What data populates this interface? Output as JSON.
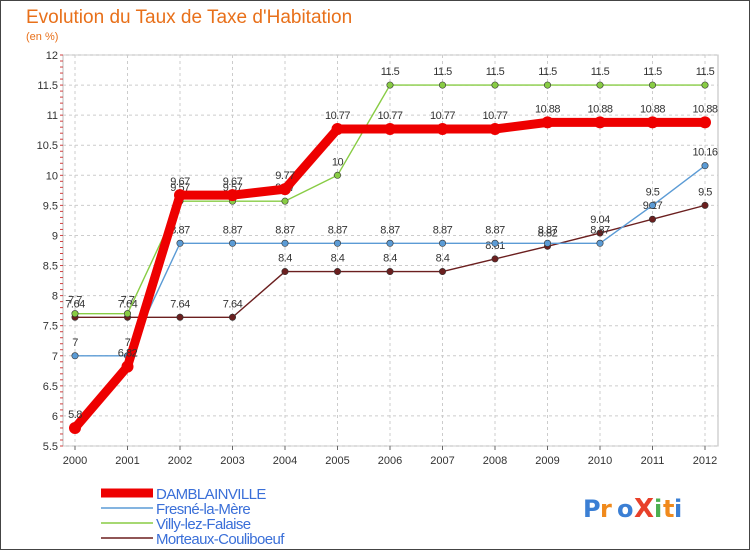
{
  "chart_data": {
    "type": "line",
    "title": "Evolution du Taux de Taxe d'Habitation",
    "subtitle": "(en %)",
    "xlabel": "",
    "ylabel": "",
    "x": [
      "2000",
      "2001",
      "2002",
      "2003",
      "2004",
      "2005",
      "2006",
      "2007",
      "2008",
      "2009",
      "2010",
      "2011",
      "2012"
    ],
    "ylim": [
      5.5,
      12
    ],
    "yticks": [
      "5.5",
      "6",
      "6.5",
      "7",
      "7.5",
      "8",
      "8.5",
      "9",
      "9.5",
      "10",
      "10.5",
      "11",
      "11.5",
      "12"
    ],
    "grid": true,
    "legend_position": "bottom-left",
    "series": [
      {
        "name": "Morteaux-Coulibœuf",
        "name_display": "Morteaux-Couliboeuf",
        "color": "#6b1f1f",
        "values": [
          7.64,
          7.64,
          7.64,
          7.64,
          8.4,
          8.4,
          8.4,
          8.4,
          8.61,
          8.82,
          9.04,
          9.27,
          9.5
        ],
        "labels": [
          "7.64",
          "7.64",
          "7.64",
          "7.64",
          "8.4",
          "8.4",
          "8.4",
          "8.4",
          "8.61",
          "8.82",
          "9.04",
          "9.27",
          "9.5"
        ]
      },
      {
        "name": "Villy-lez-Falaise",
        "color": "#88cc44",
        "values": [
          7.7,
          7.7,
          9.57,
          9.57,
          9.57,
          10,
          11.5,
          11.5,
          11.5,
          11.5,
          11.5,
          11.5,
          11.5
        ],
        "labels": [
          "7.7",
          "7.7",
          "9.57",
          "9.57",
          "9.57",
          "10",
          "11.5",
          "11.5",
          "11.5",
          "11.5",
          "11.5",
          "11.5",
          "11.5"
        ]
      },
      {
        "name": "Fresné-la-Mère",
        "color": "#5b9bd5",
        "values": [
          7,
          7,
          8.87,
          8.87,
          8.87,
          8.87,
          8.87,
          8.87,
          8.87,
          8.87,
          8.87,
          9.5,
          10.16
        ],
        "labels": [
          "7",
          "7",
          "8.87",
          "8.87",
          "8.87",
          "8.87",
          "8.87",
          "8.87",
          "8.87",
          "8.87",
          "8.87",
          "9.5",
          "10.16"
        ]
      },
      {
        "name": "DAMBLAINVILLE",
        "color": "#ee0000",
        "values": [
          5.8,
          6.82,
          9.67,
          9.67,
          9.77,
          10.77,
          10.77,
          10.77,
          10.77,
          10.88,
          10.88,
          10.88,
          10.88
        ],
        "labels": [
          "5.8",
          "6.82",
          "9.67",
          "9.67",
          "9.77",
          "10.77",
          "10.77",
          "10.77",
          "10.77",
          "10.88",
          "10.88",
          "10.88",
          "10.88"
        ]
      }
    ],
    "legend": [
      "DAMBLAINVILLE",
      "Fresné-la-Mère",
      "Villy-lez-Falaise",
      "Morteaux-Couliboeuf"
    ],
    "logo_text": "ProXiti"
  }
}
